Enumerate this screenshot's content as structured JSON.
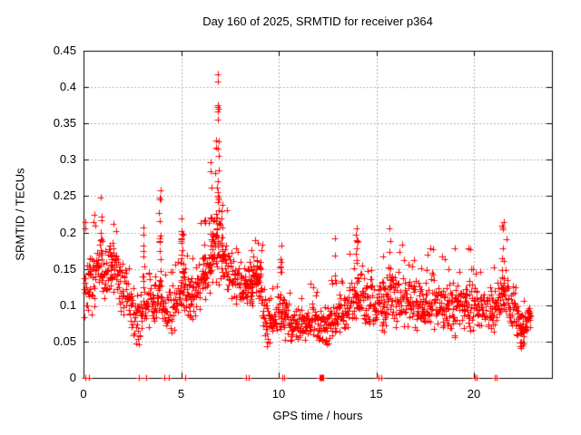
{
  "chart_data": {
    "type": "scatter",
    "title": "Day 160 of 2025, SRMTID for receiver p364",
    "xlabel": "GPS time / hours",
    "ylabel": "SRMTID / TECUs",
    "xlim": [
      0,
      24
    ],
    "ylim": [
      0,
      0.45
    ],
    "xticks": [
      "0",
      "5",
      "10",
      "15",
      "20"
    ],
    "xtick_values": [
      0,
      5,
      10,
      15,
      20
    ],
    "yticks": [
      "0",
      "0.05",
      "0.1",
      "0.15",
      "0.2",
      "0.25",
      "0.3",
      "0.35",
      "0.4",
      "0.45"
    ],
    "ytick_values": [
      0,
      0.05,
      0.1,
      0.15,
      0.2,
      0.25,
      0.3,
      0.35,
      0.4,
      0.45
    ],
    "grid": true,
    "legend": "none",
    "marker": "plus",
    "colors": {
      "marker": "#ff0000",
      "grid": "#b0b0b0",
      "border": "#000000",
      "background": "#ffffff",
      "text": "#000000"
    },
    "time_range_hours": [
      0.03,
      22.92
    ],
    "sample_step_hours": 0.01667,
    "seed": 7,
    "envelope_segments": [
      [
        0.0,
        0.4,
        0.08,
        0.17,
        0.21
      ],
      [
        0.4,
        0.7,
        0.09,
        0.18,
        0.23
      ],
      [
        0.7,
        1.0,
        0.1,
        0.2,
        0.25
      ],
      [
        1.0,
        1.4,
        0.1,
        0.2,
        0.23
      ],
      [
        1.4,
        1.8,
        0.11,
        0.19,
        0.22
      ],
      [
        1.8,
        2.1,
        0.09,
        0.17,
        0.2
      ],
      [
        2.1,
        2.5,
        0.07,
        0.15,
        0.17
      ],
      [
        2.5,
        3.0,
        0.04,
        0.12,
        0.14
      ],
      [
        3.0,
        3.3,
        0.06,
        0.14,
        0.21
      ],
      [
        3.3,
        3.7,
        0.06,
        0.13,
        0.15
      ],
      [
        3.7,
        4.0,
        0.08,
        0.16,
        0.24
      ],
      [
        4.0,
        4.5,
        0.05,
        0.13,
        0.18
      ],
      [
        4.5,
        4.9,
        0.06,
        0.14,
        0.16
      ],
      [
        4.9,
        5.2,
        0.09,
        0.17,
        0.22
      ],
      [
        5.2,
        5.6,
        0.07,
        0.15,
        0.17
      ],
      [
        5.6,
        6.0,
        0.08,
        0.16,
        0.19
      ],
      [
        6.0,
        6.3,
        0.1,
        0.19,
        0.22
      ],
      [
        6.3,
        6.6,
        0.11,
        0.21,
        0.27
      ],
      [
        6.6,
        7.0,
        0.13,
        0.23,
        0.3
      ],
      [
        7.0,
        7.4,
        0.12,
        0.21,
        0.25
      ],
      [
        7.4,
        7.8,
        0.1,
        0.19,
        0.22
      ],
      [
        7.8,
        8.2,
        0.08,
        0.16,
        0.19
      ],
      [
        8.2,
        8.6,
        0.08,
        0.16,
        0.2
      ],
      [
        8.6,
        9.2,
        0.11,
        0.17,
        0.19
      ],
      [
        9.2,
        9.6,
        0.03,
        0.12,
        0.14
      ],
      [
        9.6,
        10.0,
        0.05,
        0.11,
        0.13
      ],
      [
        10.0,
        10.35,
        0.06,
        0.13,
        0.17
      ],
      [
        10.35,
        10.8,
        0.04,
        0.1,
        0.12
      ],
      [
        10.8,
        11.6,
        0.05,
        0.1,
        0.12
      ],
      [
        11.6,
        12.1,
        0.05,
        0.11,
        0.13
      ],
      [
        12.1,
        12.6,
        0.04,
        0.1,
        0.12
      ],
      [
        12.6,
        13.1,
        0.05,
        0.12,
        0.14
      ],
      [
        13.1,
        13.6,
        0.05,
        0.12,
        0.14
      ],
      [
        13.6,
        14.2,
        0.07,
        0.16,
        0.19
      ],
      [
        14.2,
        14.7,
        0.07,
        0.14,
        0.16
      ],
      [
        14.7,
        15.1,
        0.06,
        0.13,
        0.15
      ],
      [
        15.1,
        15.6,
        0.06,
        0.15,
        0.17
      ],
      [
        15.6,
        16.0,
        0.07,
        0.16,
        0.21
      ],
      [
        16.0,
        16.6,
        0.06,
        0.15,
        0.19
      ],
      [
        16.6,
        17.1,
        0.06,
        0.15,
        0.19
      ],
      [
        17.1,
        17.6,
        0.05,
        0.14,
        0.16
      ],
      [
        17.6,
        18.1,
        0.06,
        0.15,
        0.19
      ],
      [
        18.1,
        18.7,
        0.06,
        0.14,
        0.17
      ],
      [
        18.7,
        19.2,
        0.05,
        0.14,
        0.19
      ],
      [
        19.2,
        19.7,
        0.06,
        0.14,
        0.17
      ],
      [
        19.7,
        20.2,
        0.05,
        0.14,
        0.18
      ],
      [
        20.2,
        20.8,
        0.06,
        0.13,
        0.15
      ],
      [
        20.8,
        21.3,
        0.05,
        0.13,
        0.16
      ],
      [
        21.3,
        21.8,
        0.08,
        0.17,
        0.2
      ],
      [
        21.8,
        22.2,
        0.06,
        0.13,
        0.15
      ],
      [
        22.2,
        22.7,
        0.04,
        0.1,
        0.12
      ],
      [
        22.7,
        22.95,
        0.06,
        0.1,
        0.11
      ]
    ],
    "spike_columns": [
      {
        "t": 0.93,
        "w": 0.1,
        "ymin": 0.12,
        "ymax": 0.25,
        "n": 12
      },
      {
        "t": 1.55,
        "w": 0.3,
        "ymin": 0.12,
        "ymax": 0.21,
        "n": 14
      },
      {
        "t": 3.06,
        "w": 0.08,
        "ymin": 0.12,
        "ymax": 0.21,
        "n": 8
      },
      {
        "t": 3.9,
        "w": 0.1,
        "ymin": 0.1,
        "ymax": 0.26,
        "n": 14
      },
      {
        "t": 5.05,
        "w": 0.12,
        "ymin": 0.1,
        "ymax": 0.235,
        "n": 16
      },
      {
        "t": 6.2,
        "w": 0.1,
        "ymin": 0.12,
        "ymax": 0.26,
        "n": 12
      },
      {
        "t": 6.55,
        "w": 0.1,
        "ymin": 0.13,
        "ymax": 0.3,
        "n": 12
      },
      {
        "t": 6.78,
        "w": 0.08,
        "ymin": 0.15,
        "ymax": 0.33,
        "n": 10
      },
      {
        "t": 7.12,
        "w": 0.1,
        "ymin": 0.13,
        "ymax": 0.24,
        "n": 10
      },
      {
        "t": 8.6,
        "w": 0.08,
        "ymin": 0.1,
        "ymax": 0.2,
        "n": 8
      },
      {
        "t": 8.95,
        "w": 0.25,
        "ymin": 0.13,
        "ymax": 0.165,
        "n": 16
      },
      {
        "t": 10.1,
        "w": 0.12,
        "ymin": 0.06,
        "ymax": 0.185,
        "n": 10
      },
      {
        "t": 12.9,
        "w": 0.06,
        "ymin": 0.13,
        "ymax": 0.2,
        "n": 5
      },
      {
        "t": 14.0,
        "w": 0.12,
        "ymin": 0.08,
        "ymax": 0.21,
        "n": 12
      },
      {
        "t": 15.35,
        "w": 0.08,
        "ymin": 0.06,
        "ymax": 0.185,
        "n": 8
      },
      {
        "t": 15.7,
        "w": 0.06,
        "ymin": 0.1,
        "ymax": 0.215,
        "n": 6
      },
      {
        "t": 21.5,
        "w": 0.12,
        "ymin": 0.1,
        "ymax": 0.215,
        "n": 14
      },
      {
        "t": 22.45,
        "w": 0.2,
        "ymin": 0.03,
        "ymax": 0.085,
        "n": 12
      }
    ],
    "extreme_points": [
      [
        6.9,
        0.417
      ],
      [
        6.9,
        0.408
      ],
      [
        6.88,
        0.375
      ],
      [
        6.9,
        0.373
      ],
      [
        6.91,
        0.37
      ],
      [
        6.89,
        0.367
      ],
      [
        6.9,
        0.355
      ],
      [
        6.92,
        0.325
      ],
      [
        6.88,
        0.315
      ],
      [
        6.91,
        0.305
      ],
      [
        6.93,
        0.286
      ],
      [
        6.87,
        0.27
      ],
      [
        6.86,
        0.262
      ],
      [
        6.88,
        0.255
      ],
      [
        6.9,
        0.25
      ],
      [
        6.92,
        0.246
      ],
      [
        6.89,
        0.242
      ],
      [
        6.91,
        0.23
      ],
      [
        6.86,
        0.221
      ],
      [
        6.93,
        0.212
      ],
      [
        6.85,
        0.205
      ],
      [
        0.1,
        0.215
      ],
      [
        0.11,
        0.206
      ],
      [
        0.5,
        0.215
      ],
      [
        0.55,
        0.225
      ],
      [
        0.6,
        0.21
      ]
    ],
    "zero_points": [
      0.1,
      0.28,
      2.82,
      3.22,
      4.15,
      4.38,
      5.23,
      8.32,
      8.46,
      10.2,
      10.29,
      12.1,
      12.14,
      12.18,
      12.22,
      12.26,
      12.3,
      15.12,
      15.27,
      20.06,
      20.16,
      21.06,
      21.16
    ]
  }
}
